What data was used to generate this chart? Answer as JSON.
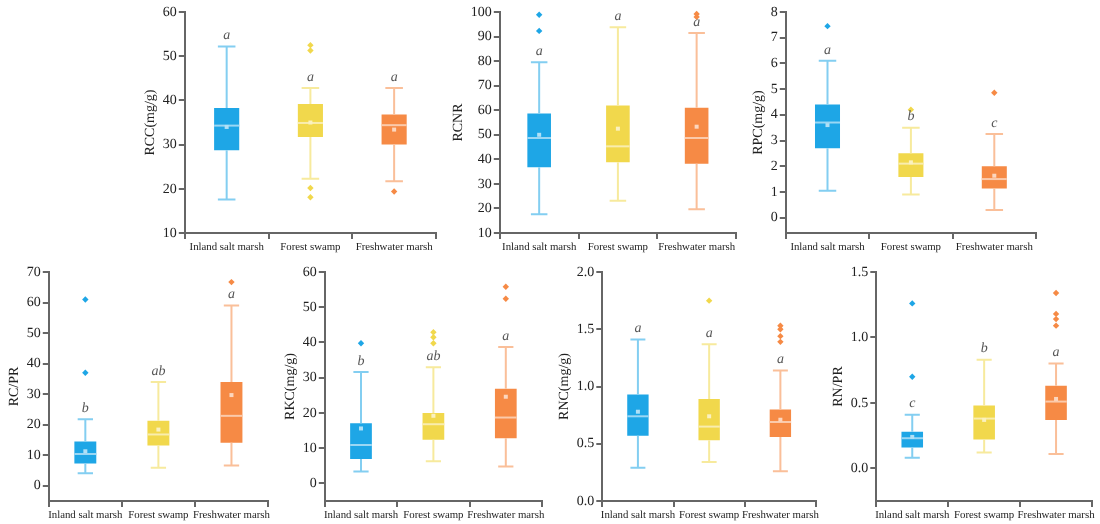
{
  "chart_data": [
    {
      "type": "box",
      "ylabel": "RCC(mg/g)",
      "categories": [
        "Inland salt marsh",
        "Forest swamp",
        "Freshwater marsh"
      ],
      "colors": [
        "#1ea6e6",
        "#f1d84c",
        "#f68a45"
      ],
      "ylim": [
        10,
        60
      ],
      "yticks": [
        10,
        20,
        30,
        40,
        50,
        60
      ],
      "boxes": [
        {
          "low": 17.6,
          "q1": 28.7,
          "median": 34.3,
          "q3": 38.3,
          "high": 52.2,
          "mean": 34
        },
        {
          "low": 22.3,
          "q1": 31.7,
          "median": 34.9,
          "q3": 39.2,
          "high": 42.8,
          "mean": 35,
          "outliers": [
            52.5,
            51.3,
            20.2,
            18.1
          ]
        },
        {
          "low": 21.7,
          "q1": 30,
          "median": 34.4,
          "q3": 36.8,
          "high": 42.8,
          "mean": 33.4,
          "outliers": [
            19.4
          ]
        }
      ],
      "annotations": [
        {
          "text": "a",
          "x": "Inland salt marsh",
          "y": 52.2
        },
        {
          "text": "a",
          "x": "Forest swamp",
          "y": 42.8
        },
        {
          "text": "a",
          "x": "Freshwater marsh",
          "y": 42.8
        }
      ]
    },
    {
      "type": "box",
      "ylabel": "RCNR",
      "categories": [
        "Inland salt marsh",
        "Forest swamp",
        "Freshwater marsh"
      ],
      "colors": [
        "#1ea6e6",
        "#f1d84c",
        "#f68a45"
      ],
      "ylim": [
        10,
        100
      ],
      "yticks": [
        10,
        20,
        30,
        40,
        50,
        60,
        70,
        80,
        90,
        100
      ],
      "boxes": [
        {
          "low": 17.7,
          "q1": 36.8,
          "median": 48.7,
          "q3": 58.7,
          "high": 79.5,
          "mean": 50,
          "outliers": [
            98.9,
            92.3
          ]
        },
        {
          "low": 23.1,
          "q1": 38.8,
          "median": 45.3,
          "q3": 61.9,
          "high": 93.8,
          "mean": 52.5
        },
        {
          "low": 19.7,
          "q1": 38.2,
          "median": 48.7,
          "q3": 61,
          "high": 91.5,
          "mean": 53.3,
          "outliers": [
            99.2,
            98
          ]
        }
      ],
      "annotations": [
        {
          "text": "a",
          "x": "Inland salt marsh",
          "y": 79.5
        },
        {
          "text": "a",
          "x": "Forest swamp",
          "y": 93.8
        },
        {
          "text": "a",
          "x": "Freshwater marsh",
          "y": 91.5
        }
      ]
    },
    {
      "type": "box",
      "ylabel": "RPC(mg/g)",
      "categories": [
        "Inland salt marsh",
        "Forest swamp",
        "Freshwater marsh"
      ],
      "colors": [
        "#1ea6e6",
        "#f1d84c",
        "#f68a45"
      ],
      "ylim": [
        -0.6,
        8
      ],
      "yticks": [
        0,
        1,
        2,
        3,
        4,
        5,
        6,
        7,
        8
      ],
      "boxes": [
        {
          "low": 1.05,
          "q1": 2.7,
          "median": 3.7,
          "q3": 4.4,
          "high": 6.1,
          "mean": 3.6,
          "outliers": [
            7.45
          ]
        },
        {
          "low": 0.9,
          "q1": 1.58,
          "median": 2.1,
          "q3": 2.5,
          "high": 3.5,
          "mean": 2.15,
          "outliers": [
            4.2
          ]
        },
        {
          "low": 0.3,
          "q1": 1.13,
          "median": 1.5,
          "q3": 2,
          "high": 3.25,
          "mean": 1.63,
          "outliers": [
            4.86
          ]
        }
      ],
      "annotations": [
        {
          "text": "a",
          "x": "Inland salt marsh",
          "y": 6.1
        },
        {
          "text": "b",
          "x": "Forest swamp",
          "y": 3.5
        },
        {
          "text": "c",
          "x": "Freshwater marsh",
          "y": 3.25
        }
      ]
    },
    {
      "type": "box",
      "ylabel": "RC/PR",
      "categories": [
        "Inland salt marsh",
        "Forest swamp",
        "Freshwater marsh"
      ],
      "colors": [
        "#1ea6e6",
        "#f1d84c",
        "#f68a45"
      ],
      "ylim": [
        -5,
        70
      ],
      "yticks": [
        0,
        10,
        20,
        30,
        40,
        50,
        60,
        70
      ],
      "boxes": [
        {
          "low": 4.1,
          "q1": 7.3,
          "median": 10.4,
          "q3": 14.5,
          "high": 21.8,
          "mean": 11.3,
          "outliers": [
            61,
            37
          ]
        },
        {
          "low": 5.9,
          "q1": 13.2,
          "median": 16.8,
          "q3": 21.3,
          "high": 34,
          "mean": 18.4
        },
        {
          "low": 6.6,
          "q1": 14.1,
          "median": 22.9,
          "q3": 34,
          "high": 59,
          "mean": 29.7,
          "outliers": [
            66.7
          ]
        }
      ],
      "annotations": [
        {
          "text": "b",
          "x": "Inland salt marsh",
          "y": 21.8
        },
        {
          "text": "ab",
          "x": "Forest swamp",
          "y": 34
        },
        {
          "text": "a",
          "x": "Freshwater marsh",
          "y": 59
        }
      ]
    },
    {
      "type": "box",
      "ylabel": "RKC(mg/g)",
      "categories": [
        "Inland salt marsh",
        "Forest swamp",
        "Freshwater marsh"
      ],
      "colors": [
        "#1ea6e6",
        "#f1d84c",
        "#f68a45"
      ],
      "ylim": [
        -5,
        60
      ],
      "yticks": [
        0,
        10,
        20,
        30,
        40,
        50,
        60
      ],
      "boxes": [
        {
          "low": 3.4,
          "q1": 6.9,
          "median": 10.9,
          "q3": 17.1,
          "high": 31.6,
          "mean": 15.6,
          "outliers": [
            39.8
          ]
        },
        {
          "low": 6.3,
          "q1": 12.4,
          "median": 16.8,
          "q3": 20,
          "high": 33,
          "mean": 19.2,
          "outliers": [
            42.9,
            41.5,
            39.8
          ]
        },
        {
          "low": 4.8,
          "q1": 12.8,
          "median": 18.7,
          "q3": 26.9,
          "high": 38.7,
          "mean": 24.6,
          "outliers": [
            55.8,
            52.4
          ]
        }
      ],
      "annotations": [
        {
          "text": "b",
          "x": "Inland salt marsh",
          "y": 31.6
        },
        {
          "text": "ab",
          "x": "Forest swamp",
          "y": 33
        },
        {
          "text": "a",
          "x": "Freshwater marsh",
          "y": 38.7
        }
      ]
    },
    {
      "type": "box",
      "ylabel": "RNC(mg/g)",
      "categories": [
        "Inland salt marsh",
        "Forest swamp",
        "Freshwater marsh"
      ],
      "colors": [
        "#1ea6e6",
        "#f1d84c",
        "#f68a45"
      ],
      "ylim": [
        0,
        2
      ],
      "yticks": [
        {
          "value": 0,
          "label": "0.0"
        },
        {
          "value": 0.5,
          "label": "0.5"
        },
        {
          "value": 1,
          "label": "1.0"
        },
        {
          "value": 1.5,
          "label": "1.5"
        },
        {
          "value": 2,
          "label": "2.0"
        }
      ],
      "boxes": [
        {
          "low": 0.29,
          "q1": 0.57,
          "median": 0.74,
          "q3": 0.93,
          "high": 1.41,
          "mean": 0.78
        },
        {
          "low": 0.34,
          "q1": 0.53,
          "median": 0.65,
          "q3": 0.89,
          "high": 1.37,
          "mean": 0.74,
          "outliers": [
            1.75
          ]
        },
        {
          "low": 0.26,
          "q1": 0.56,
          "median": 0.69,
          "q3": 0.8,
          "high": 1.14,
          "mean": 0.71,
          "outliers": [
            1.53,
            1.5,
            1.44,
            1.39
          ]
        }
      ],
      "annotations": [
        {
          "text": "a",
          "x": "Inland salt marsh",
          "y": 1.41
        },
        {
          "text": "a",
          "x": "Forest swamp",
          "y": 1.37
        },
        {
          "text": "a",
          "x": "Freshwater marsh",
          "y": 1.14
        }
      ]
    },
    {
      "type": "box",
      "ylabel": "RN/PR",
      "categories": [
        "Inland salt marsh",
        "Forest swamp",
        "Freshwater marsh"
      ],
      "colors": [
        "#1ea6e6",
        "#f1d84c",
        "#f68a45"
      ],
      "ylim": [
        -0.25,
        1.5
      ],
      "yticks": [
        {
          "value": 0,
          "label": "0.0"
        },
        {
          "value": 0.5,
          "label": "0.5"
        },
        {
          "value": 1,
          "label": "1.0"
        },
        {
          "value": 1.5,
          "label": "1.5"
        }
      ],
      "boxes": [
        {
          "low": 0.08,
          "q1": 0.16,
          "median": 0.23,
          "q3": 0.28,
          "high": 0.41,
          "mean": 0.24,
          "outliers": [
            1.26,
            0.7
          ]
        },
        {
          "low": 0.12,
          "q1": 0.22,
          "median": 0.38,
          "q3": 0.48,
          "high": 0.83,
          "mean": 0.37
        },
        {
          "low": 0.11,
          "q1": 0.37,
          "median": 0.51,
          "q3": 0.63,
          "high": 0.8,
          "mean": 0.53,
          "outliers": [
            1.34,
            1.18,
            1.14,
            1.09
          ]
        }
      ],
      "annotations": [
        {
          "text": "c",
          "x": "Inland salt marsh",
          "y": 0.41
        },
        {
          "text": "b",
          "x": "Forest swamp",
          "y": 0.83
        },
        {
          "text": "a",
          "x": "Freshwater marsh",
          "y": 0.8
        }
      ]
    }
  ]
}
